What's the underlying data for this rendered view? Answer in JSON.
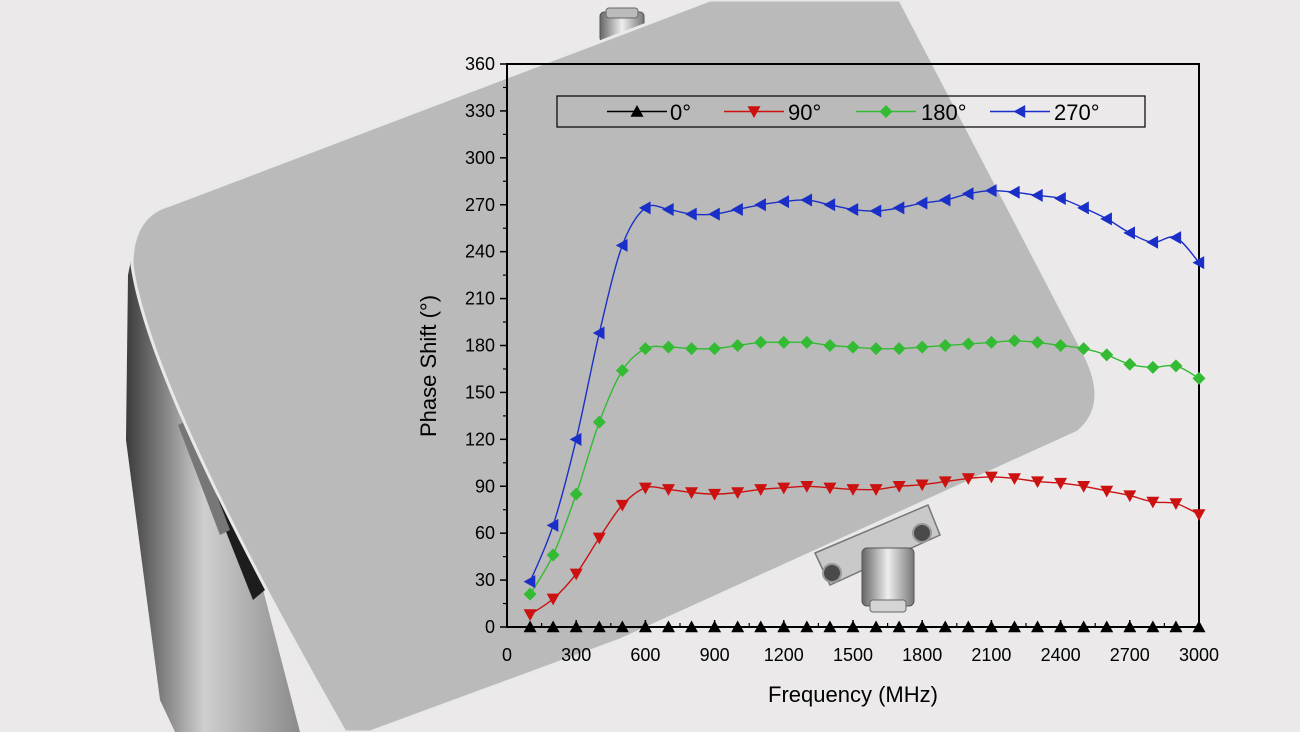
{
  "chart_data": {
    "type": "line",
    "xlabel": "Frequency (MHz)",
    "ylabel": "Phase Shift (°)",
    "xlim": [
      0,
      3000
    ],
    "ylim": [
      0,
      360
    ],
    "xticks": [
      0,
      300,
      600,
      900,
      1200,
      1500,
      1800,
      2100,
      2400,
      2700,
      3000
    ],
    "yticks": [
      0,
      30,
      60,
      90,
      120,
      150,
      180,
      210,
      240,
      270,
      300,
      330,
      360
    ],
    "grid": false,
    "legend_position": "top",
    "x": [
      100,
      200,
      300,
      400,
      500,
      600,
      700,
      800,
      900,
      1000,
      1100,
      1200,
      1300,
      1400,
      1500,
      1600,
      1700,
      1800,
      1900,
      2000,
      2100,
      2200,
      2300,
      2400,
      2500,
      2600,
      2700,
      2800,
      2900,
      3000
    ],
    "series": [
      {
        "name": "0°",
        "color": "#000000",
        "marker": "triangle-up",
        "values": [
          0,
          0,
          0,
          0,
          0,
          0,
          0,
          0,
          0,
          0,
          0,
          0,
          0,
          0,
          0,
          0,
          0,
          0,
          0,
          0,
          0,
          0,
          0,
          0,
          0,
          0,
          0,
          0,
          0,
          0
        ]
      },
      {
        "name": "90°",
        "color": "#cc1111",
        "marker": "triangle-down",
        "values": [
          8,
          18,
          34,
          57,
          78,
          89,
          88,
          86,
          85,
          86,
          88,
          89,
          90,
          89,
          88,
          88,
          90,
          91,
          93,
          95,
          96,
          95,
          93,
          92,
          90,
          87,
          84,
          80,
          79,
          72
        ]
      },
      {
        "name": "180°",
        "color": "#33bb33",
        "marker": "diamond",
        "values": [
          21,
          46,
          85,
          131,
          164,
          178,
          179,
          178,
          178,
          180,
          182,
          182,
          182,
          180,
          179,
          178,
          178,
          179,
          180,
          181,
          182,
          183,
          182,
          180,
          178,
          174,
          168,
          166,
          167,
          159
        ]
      },
      {
        "name": "270°",
        "color": "#1a2fc8",
        "marker": "triangle-left",
        "values": [
          29,
          65,
          120,
          188,
          244,
          268,
          267,
          264,
          264,
          267,
          270,
          272,
          273,
          270,
          267,
          266,
          268,
          271,
          273,
          277,
          279,
          278,
          276,
          274,
          268,
          261,
          252,
          246,
          249,
          233
        ]
      }
    ]
  }
}
